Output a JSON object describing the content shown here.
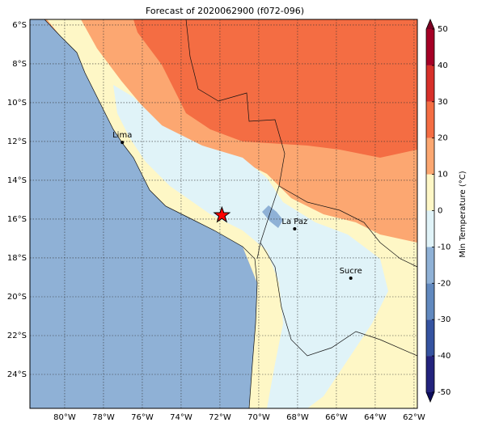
{
  "title": "Forecast of 2020062900 (f072-096)",
  "map": {
    "xlim": [
      -81.79,
      -61.83
    ],
    "ylim": [
      -25.75,
      -5.71
    ],
    "xticks": [
      {
        "value": -80,
        "label": "80°W"
      },
      {
        "value": -78,
        "label": "78°W"
      },
      {
        "value": -76,
        "label": "76°W"
      },
      {
        "value": -74,
        "label": "74°W"
      },
      {
        "value": -72,
        "label": "72°W"
      },
      {
        "value": -70,
        "label": "70°W"
      },
      {
        "value": -68,
        "label": "68°W"
      },
      {
        "value": -66,
        "label": "66°W"
      },
      {
        "value": -64,
        "label": "64°W"
      },
      {
        "value": -62,
        "label": "62°W"
      }
    ],
    "yticks": [
      {
        "value": -6,
        "label": "6°S"
      },
      {
        "value": -8,
        "label": "8°S"
      },
      {
        "value": -10,
        "label": "10°S"
      },
      {
        "value": -12,
        "label": "12°S"
      },
      {
        "value": -14,
        "label": "14°S"
      },
      {
        "value": -16,
        "label": "16°S"
      },
      {
        "value": -18,
        "label": "18°S"
      },
      {
        "value": -20,
        "label": "20°S"
      },
      {
        "value": -22,
        "label": "22°S"
      },
      {
        "value": -24,
        "label": "24°S"
      }
    ],
    "grid": true,
    "places": [
      {
        "name": "Lima",
        "lon": -77.03,
        "lat": -12.05
      },
      {
        "name": "La Paz",
        "lon": -68.15,
        "lat": -16.5
      },
      {
        "name": "Sucre",
        "lon": -65.26,
        "lat": -19.04
      }
    ],
    "marker": {
      "lon": -71.9,
      "lat": -15.8,
      "color": "#ff0000"
    }
  },
  "colorbar": {
    "label": "Min Temperature (°C)",
    "lim": [
      -50,
      50
    ],
    "ticks": [
      -50,
      -40,
      -30,
      -20,
      -10,
      0,
      10,
      20,
      30,
      40,
      50
    ],
    "colors": [
      "#23237d",
      "#3553a0",
      "#6189bf",
      "#8fb1d6",
      "#e0f3f8",
      "#fef7c6",
      "#fca771",
      "#f46d43",
      "#d7302a",
      "#a50026"
    ],
    "extend_colors": [
      "#0d0d5c",
      "#7a0022"
    ]
  }
}
